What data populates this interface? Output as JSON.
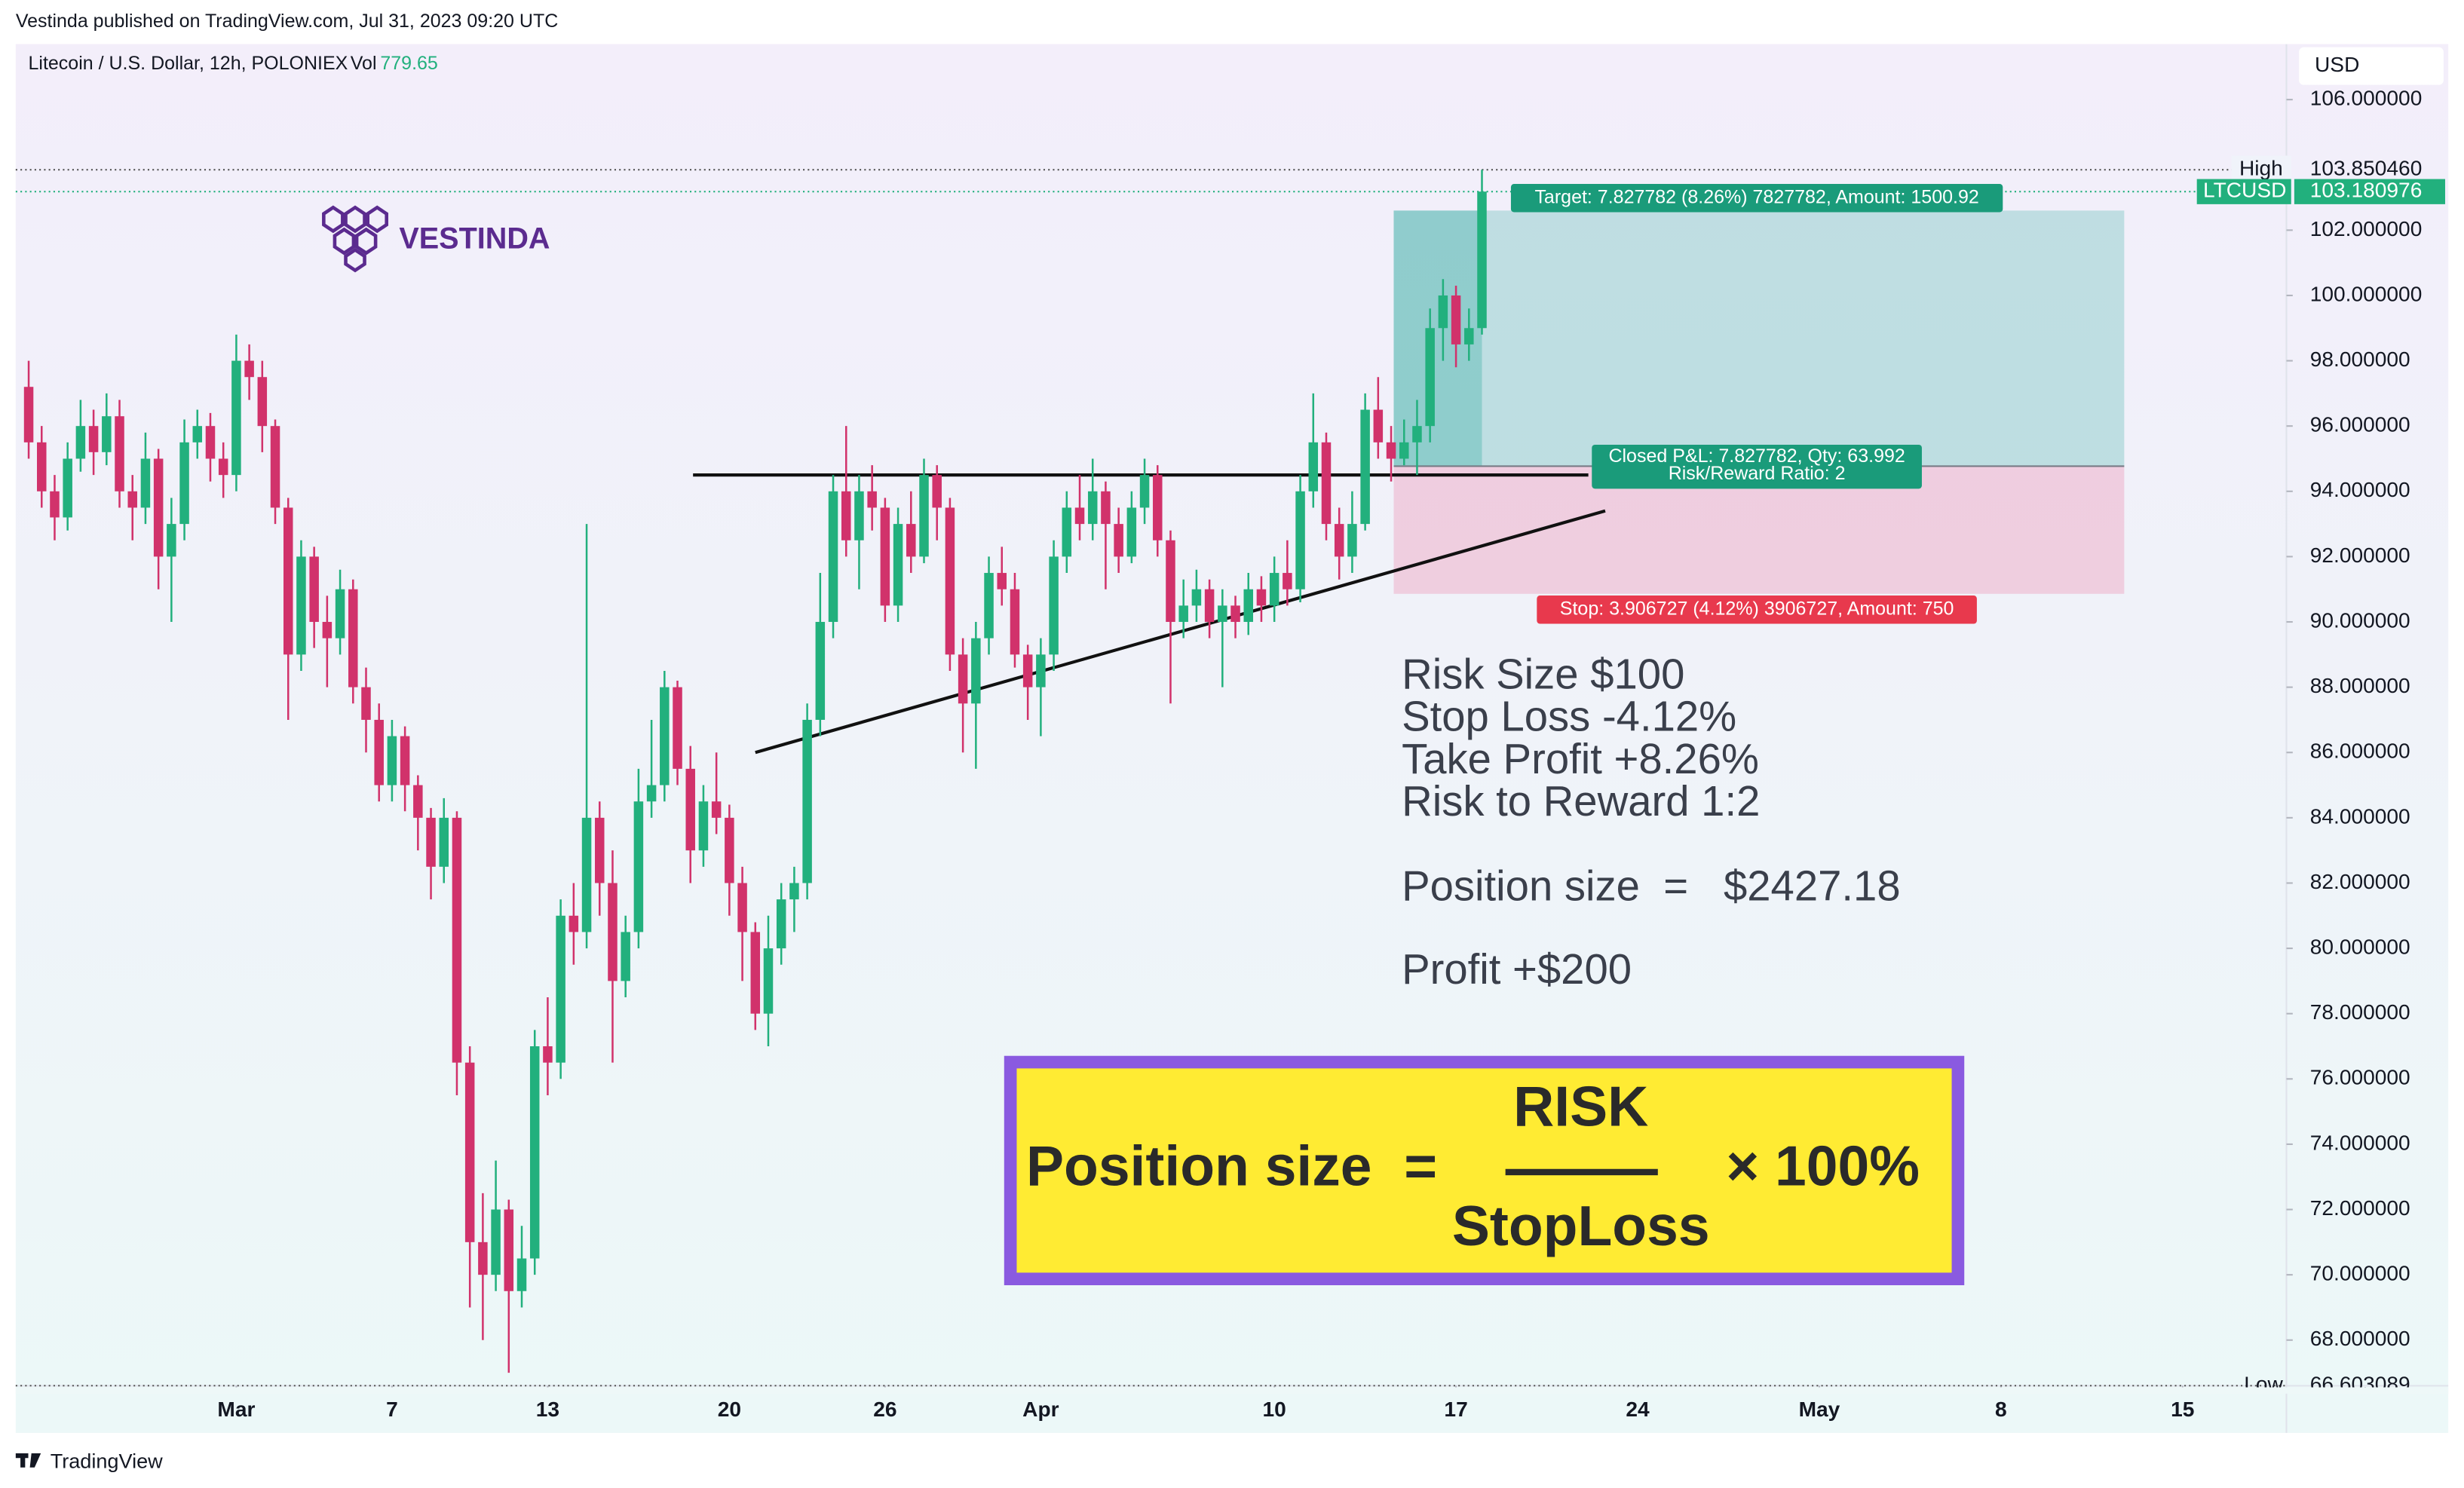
{
  "header": {
    "published": "Vestinda published on TradingView.com, Jul 31, 2023 09:20 UTC",
    "symbol": "Litecoin / U.S. Dollar, 12h, POLONIEX",
    "vol_label": "Vol",
    "vol": 779.65
  },
  "logo": "VESTINDA",
  "footer": "TradingView",
  "chart_data": {
    "type": "candlestick",
    "currency": "USD",
    "up_color": "#22b07d",
    "down_color": "#d1326b",
    "xlim": [
      -1,
      174
    ],
    "ylim": [
      66.6,
      107.7
    ],
    "grid": false,
    "xticks": [
      {
        "value": 16,
        "label": "Mar"
      },
      {
        "value": 28,
        "label": "7"
      },
      {
        "value": 40,
        "label": "13"
      },
      {
        "value": 54,
        "label": "20"
      },
      {
        "value": 66,
        "label": "26"
      },
      {
        "value": 78,
        "label": "Apr"
      },
      {
        "value": 96,
        "label": "10"
      },
      {
        "value": 110,
        "label": "17"
      },
      {
        "value": 124,
        "label": "24"
      },
      {
        "value": 138,
        "label": "May"
      },
      {
        "value": 152,
        "label": "8"
      },
      {
        "value": 166,
        "label": "15"
      }
    ],
    "yticks": [
      {
        "value": 106,
        "label": "106.000000"
      },
      {
        "value": 102,
        "label": "102.000000"
      },
      {
        "value": 100,
        "label": "100.000000"
      },
      {
        "value": 98,
        "label": "98.000000"
      },
      {
        "value": 96,
        "label": "96.000000"
      },
      {
        "value": 94,
        "label": "94.000000"
      },
      {
        "value": 92,
        "label": "92.000000"
      },
      {
        "value": 90,
        "label": "90.000000"
      },
      {
        "value": 88,
        "label": "88.000000"
      },
      {
        "value": 86,
        "label": "86.000000"
      },
      {
        "value": 84,
        "label": "84.000000"
      },
      {
        "value": 82,
        "label": "82.000000"
      },
      {
        "value": 80,
        "label": "80.000000"
      },
      {
        "value": 78,
        "label": "78.000000"
      },
      {
        "value": 76,
        "label": "76.000000"
      },
      {
        "value": 74,
        "label": "74.000000"
      },
      {
        "value": 72,
        "label": "72.000000"
      },
      {
        "value": 70,
        "label": "70.000000"
      },
      {
        "value": 68,
        "label": "68.000000"
      }
    ],
    "open": [
      97.2,
      95.5,
      94,
      93.2,
      95,
      96,
      95.2,
      96.3,
      94,
      93.5,
      95,
      92,
      93,
      95.5,
      96,
      95,
      94.5,
      98,
      97.5,
      96,
      93.5,
      89,
      92,
      90,
      89.5,
      91,
      88,
      87,
      85,
      86.5,
      85,
      84,
      82.5,
      84,
      76.5,
      71,
      70,
      72,
      69.5,
      70.5,
      77,
      76.5,
      81,
      80.5,
      84,
      82,
      79,
      80.5,
      84.5,
      85,
      88,
      85.5,
      83,
      84.5,
      84,
      82,
      80.5,
      78,
      80,
      81.5,
      82,
      87,
      90,
      94,
      92.5,
      94,
      93.5,
      90.5,
      93,
      92,
      94.5,
      93.5,
      89,
      87.5,
      89.5,
      91.5,
      91,
      89,
      88,
      89,
      92,
      93.5,
      93,
      94,
      93,
      92,
      93.5,
      94.5,
      92.5,
      90,
      90.5,
      91,
      90,
      90.5,
      90,
      91,
      90.5,
      91.5,
      91,
      94,
      95.5,
      93,
      92,
      93,
      96.5,
      95.5,
      95,
      95.5,
      96,
      99,
      100,
      98.5,
      99
    ],
    "high": [
      98,
      96,
      94.5,
      95.5,
      96.8,
      96.5,
      97,
      96.8,
      94.5,
      95.8,
      95.3,
      93.8,
      96.2,
      96.5,
      96.4,
      95.5,
      98.8,
      98.5,
      98,
      96.2,
      93.8,
      92.5,
      92.3,
      90.8,
      91.6,
      91.3,
      88.6,
      87.5,
      87,
      86.8,
      85.3,
      84.3,
      84.6,
      84.2,
      77,
      72.5,
      73.5,
      72.3,
      71.5,
      77.5,
      78.5,
      81.5,
      82,
      93,
      84.5,
      83,
      81,
      85.5,
      87,
      88.5,
      88.2,
      86.2,
      85,
      86,
      84.4,
      82.5,
      80.8,
      81,
      82,
      82.5,
      87.5,
      91.5,
      94.5,
      96,
      94.5,
      94.8,
      93.8,
      93.5,
      94,
      95,
      94.8,
      93.8,
      89.5,
      90,
      92,
      92.3,
      91.5,
      89.3,
      89.5,
      92.5,
      94,
      94.5,
      95,
      94.3,
      93.5,
      94,
      95,
      94.8,
      92.8,
      91.3,
      91.6,
      91.3,
      91,
      90.8,
      91.5,
      91.4,
      92,
      92.5,
      94.5,
      97,
      95.8,
      93.5,
      94,
      97,
      97.5,
      96,
      96.2,
      96.8,
      99.6,
      100.5,
      100.3,
      99.6,
      103.85046
    ],
    "low": [
      95,
      93.5,
      92.5,
      92.8,
      94.6,
      94.5,
      94.8,
      93.5,
      92.5,
      93,
      91,
      90,
      92.5,
      95,
      94.3,
      93.8,
      94,
      96.8,
      95.2,
      93,
      87,
      88.5,
      89.2,
      88,
      89,
      87.5,
      86,
      84.5,
      84.5,
      84.2,
      83,
      81.5,
      82,
      75.5,
      69,
      68,
      69.5,
      67,
      69,
      70,
      75.5,
      76,
      79.5,
      80,
      81,
      76.5,
      78.5,
      80,
      84,
      84.5,
      85,
      82,
      82.5,
      83.5,
      81,
      79,
      77.5,
      77,
      79.5,
      80.5,
      81.5,
      86.5,
      89.5,
      92,
      91,
      92.8,
      90,
      90,
      91.5,
      91.8,
      92.5,
      88.5,
      86,
      85.5,
      89,
      90.5,
      88.6,
      87,
      86.5,
      88.5,
      91.5,
      92.5,
      92.5,
      91,
      91.5,
      91.8,
      93,
      92,
      87.5,
      89.5,
      90,
      89.5,
      88,
      89.5,
      89.6,
      90,
      90,
      90.5,
      90.6,
      93.5,
      92.5,
      91.3,
      91.5,
      92.8,
      95,
      94.3,
      94.8,
      94.5,
      95.5,
      98,
      97.8,
      98,
      98.8
    ],
    "close": [
      95.5,
      94,
      93.2,
      95,
      96,
      95.2,
      96.3,
      94,
      93.5,
      95,
      92,
      93,
      95.5,
      96,
      95,
      94.5,
      98,
      97.5,
      96,
      93.5,
      89,
      92,
      90,
      89.5,
      91,
      88,
      87,
      85,
      86.5,
      85,
      84,
      82.5,
      84,
      76.5,
      71,
      70,
      72,
      69.5,
      70.5,
      77,
      76.5,
      81,
      80.5,
      84,
      82,
      79,
      80.5,
      84.5,
      85,
      88,
      85.5,
      83,
      84.5,
      84,
      82,
      80.5,
      78,
      80,
      81.5,
      82,
      87,
      90,
      94,
      92.5,
      94,
      93.5,
      90.5,
      93,
      92,
      94.5,
      93.5,
      89,
      87.5,
      89.5,
      91.5,
      91,
      89,
      88,
      89,
      92,
      93.5,
      93,
      94,
      93,
      92,
      93.5,
      94.5,
      92.5,
      90,
      90.5,
      91,
      90,
      90.5,
      90,
      91,
      90.5,
      91.5,
      91,
      94,
      95.5,
      93,
      92,
      93,
      96.5,
      95.5,
      95,
      95.5,
      96,
      99,
      100,
      98.5,
      99,
      103.180976
    ],
    "high_marker": {
      "name": "High",
      "value": 103.85046,
      "label": "103.850460"
    },
    "last_price": {
      "name": "LTCUSD",
      "value": 103.180976,
      "label": "103.180976"
    },
    "low_marker": {
      "name": "Low",
      "value": 66.603089,
      "label": "66.603089"
    },
    "lines": [
      {
        "x": [
          51.2,
          120.2
        ],
        "y": [
          94.5,
          94.5
        ]
      },
      {
        "x": [
          56,
          121.5
        ],
        "y": [
          86.0,
          93.4
        ]
      }
    ],
    "position": {
      "x": [
        105.2,
        161.5
      ],
      "filled_x": 112,
      "entry": 94.77,
      "target": 102.6,
      "stop": 90.86,
      "target_label": "Target: 7.827782 (8.26%) 7827782, Amount: 1500.92",
      "pnl_label": [
        "Closed P&L: 7.827782, Qty: 63.992",
        "Risk/Reward Ratio: 2"
      ],
      "stop_label": "Stop: 3.906727 (4.12%) 3906727, Amount: 750"
    },
    "annotations": [
      "Risk Size $100",
      "Stop Loss -4.12%",
      "Take Profit +8.26%",
      "Risk to Reward 1:2",
      "Position size  =   $2427.18",
      "Profit +$200"
    ],
    "formula": {
      "lhs": "Position size",
      "eq": "=",
      "numerator": "RISK",
      "denominator": "StopLoss",
      "factor": "× 100%"
    }
  }
}
